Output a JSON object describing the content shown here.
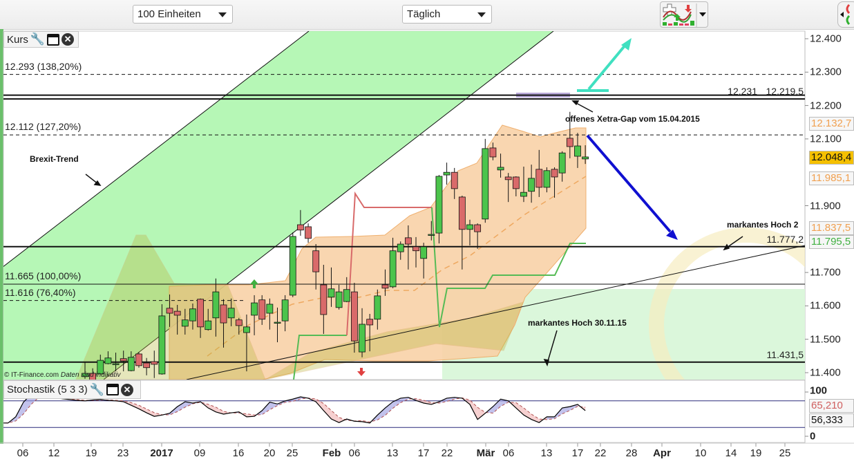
{
  "toolbar": {
    "units_select": "100 Einheiten",
    "interval_select": "Täglich",
    "indicator_button_icon": "indicator-chart-icon",
    "swap_button_icon": "swap-arrows-icon"
  },
  "main_panel": {
    "label": "Kurs",
    "copyright": "© IT-Finance.com",
    "disclaimer": "Daten sind indikativ"
  },
  "stoch_panel": {
    "label": "Stochastik (5 3 3)",
    "axis_labels": [
      "100",
      "0"
    ],
    "tag_d": "65,210",
    "tag_k": "56,333",
    "colors": {
      "k_line": "#000000",
      "d_line": "#b05050",
      "fill_up": "#9a9ae0",
      "fill_down": "#f0b0b0",
      "band": "#2a2a7a"
    }
  },
  "annotations": {
    "gap": "offenes Xetra-Gap vom 15.04.2015",
    "brexit": "Brexit-Trend",
    "hoch2": "markantes Hoch 2",
    "hoch_3011": "markantes Hoch 30.11.15"
  },
  "chart_data": {
    "type": "candlestick",
    "ylim": [
      11.4,
      12.4
    ],
    "y_ticks": [
      "12.400",
      "12.300",
      "12.200",
      "12.100",
      "11.900",
      "11.700",
      "11.600",
      "11.500",
      "11.400"
    ],
    "y_tick_values": [
      12.4,
      12.3,
      12.2,
      12.1,
      11.9,
      11.7,
      11.6,
      11.5,
      11.4
    ],
    "x_ticks": [
      "06",
      "12",
      "19",
      "23",
      "2017",
      "09",
      "16",
      "20",
      "25",
      "Feb",
      "06",
      "13",
      "17",
      "22",
      "Mär",
      "06",
      "13",
      "17",
      "22",
      "28",
      "Apr",
      "10",
      "14",
      "19",
      "25"
    ],
    "x_ticks_bold": [
      "2017",
      "Feb",
      "Mär",
      "Apr"
    ],
    "colors": {
      "up": "#4cc44c",
      "down": "#d96a6a",
      "bollinger": "#f9d2a8",
      "channel": "#b6f7b6",
      "gap": "#b9a9d9",
      "teal_arrow": "#40e0c0",
      "blue_arrow": "#1010d0"
    },
    "candles_ohlc": [
      [
        11.388,
        11.433,
        11.382,
        11.398
      ],
      [
        11.398,
        11.413,
        11.377,
        11.377
      ],
      [
        11.396,
        11.454,
        11.396,
        11.437
      ],
      [
        11.427,
        11.464,
        11.425,
        11.444
      ],
      [
        11.427,
        11.46,
        11.404,
        11.427
      ],
      [
        11.442,
        11.466,
        11.404,
        11.435
      ],
      [
        11.406,
        11.464,
        11.404,
        11.446
      ],
      [
        11.456,
        11.462,
        11.415,
        11.421
      ],
      [
        11.429,
        11.444,
        11.392,
        11.415
      ],
      [
        11.433,
        11.466,
        11.384,
        11.425
      ],
      [
        11.396,
        11.605,
        11.394,
        11.57
      ],
      [
        11.593,
        11.634,
        11.537,
        11.578
      ],
      [
        11.584,
        11.603,
        11.514,
        11.572
      ],
      [
        11.539,
        11.591,
        11.514,
        11.558
      ],
      [
        11.555,
        11.607,
        11.529,
        11.591
      ],
      [
        11.62,
        11.622,
        11.504,
        11.537
      ],
      [
        11.529,
        11.591,
        11.526,
        11.555
      ],
      [
        11.564,
        11.682,
        11.508,
        11.642
      ],
      [
        11.603,
        11.62,
        11.475,
        11.549
      ],
      [
        11.564,
        11.622,
        11.539,
        11.593
      ],
      [
        11.558,
        11.564,
        11.514,
        11.541
      ],
      [
        11.52,
        11.574,
        11.404,
        11.537
      ],
      [
        11.572,
        11.632,
        11.512,
        11.609
      ],
      [
        11.618,
        11.632,
        11.543,
        11.56
      ],
      [
        11.578,
        11.622,
        11.529,
        11.605
      ],
      [
        11.549,
        11.595,
        11.491,
        11.551
      ],
      [
        11.555,
        11.632,
        11.524,
        11.618
      ],
      [
        11.632,
        11.82,
        11.626,
        11.808
      ],
      [
        11.843,
        11.887,
        11.81,
        11.827
      ],
      [
        11.837,
        11.847,
        11.789,
        11.802
      ],
      [
        11.765,
        11.785,
        11.649,
        11.702
      ],
      [
        11.663,
        11.723,
        11.516,
        11.574
      ],
      [
        11.626,
        11.715,
        11.597,
        11.651
      ],
      [
        11.595,
        11.663,
        11.589,
        11.642
      ],
      [
        11.613,
        11.686,
        11.611,
        11.649
      ],
      [
        11.642,
        11.669,
        11.46,
        11.495
      ],
      [
        11.462,
        11.593,
        11.446,
        11.545
      ],
      [
        11.56,
        11.576,
        11.464,
        11.543
      ],
      [
        11.56,
        11.649,
        11.529,
        11.63
      ],
      [
        11.663,
        11.709,
        11.63,
        11.653
      ],
      [
        11.657,
        11.804,
        11.653,
        11.765
      ],
      [
        11.762,
        11.793,
        11.738,
        11.785
      ],
      [
        11.804,
        11.841,
        11.709,
        11.785
      ],
      [
        11.777,
        11.806,
        11.715,
        11.765
      ],
      [
        11.742,
        11.789,
        11.682,
        11.777
      ],
      [
        11.812,
        11.854,
        11.796,
        11.814
      ],
      [
        11.818,
        11.992,
        11.787,
        11.988
      ],
      [
        11.992,
        12.029,
        11.963,
        12.0
      ],
      [
        12.0,
        12.013,
        11.92,
        11.951
      ],
      [
        11.926,
        11.93,
        11.709,
        11.829
      ],
      [
        11.829,
        11.858,
        11.781,
        11.843
      ],
      [
        11.843,
        11.847,
        11.771,
        11.822
      ],
      [
        11.86,
        12.1,
        11.849,
        12.071
      ],
      [
        12.073,
        12.089,
        12.036,
        12.046
      ],
      [
        12.007,
        12.056,
        11.984,
        12.015
      ],
      [
        11.986,
        11.998,
        11.911,
        11.978
      ],
      [
        11.986,
        11.988,
        11.928,
        11.951
      ],
      [
        11.928,
        12.017,
        11.911,
        11.94
      ],
      [
        11.943,
        12.023,
        11.909,
        11.982
      ],
      [
        12.009,
        12.067,
        11.926,
        11.955
      ],
      [
        11.955,
        12.015,
        11.94,
        12.005
      ],
      [
        12.009,
        12.015,
        11.924,
        11.986
      ],
      [
        11.998,
        12.063,
        11.972,
        12.058
      ],
      [
        12.102,
        12.181,
        12.042,
        12.077
      ],
      [
        12.048,
        12.118,
        12.013,
        12.079
      ],
      [
        12.04,
        12.081,
        12.025,
        12.046
      ]
    ],
    "levels": [
      {
        "price": 12.293,
        "label": "12.293 (138,20%)",
        "side": "left",
        "style": "dashed"
      },
      {
        "price": 12.231,
        "label": "12.231",
        "side": "right",
        "style": "solid"
      },
      {
        "price": 12.2195,
        "label": "12.219,5",
        "side": "right",
        "style": "solid"
      },
      {
        "price": 12.112,
        "label": "12.112 (127,20%)",
        "side": "left",
        "style": "dashed"
      },
      {
        "price": 11.7772,
        "label": "11.777,2",
        "side": "right",
        "style": "solid"
      },
      {
        "price": 11.665,
        "label": "11.665 (100,00%)",
        "side": "left",
        "style": "solid-thin"
      },
      {
        "price": 11.616,
        "label": "11.616 (76,40%)",
        "side": "left",
        "style": "dashed-short"
      },
      {
        "price": 11.4315,
        "label": "11.431,5",
        "side": "right",
        "style": "solid"
      }
    ],
    "price_tags": [
      {
        "price": 12.1327,
        "label": "12.132,7",
        "color": "#f0a050",
        "bg": "#f6f6f6"
      },
      {
        "price": 12.0484,
        "label": "12.048,4",
        "color": "#111111",
        "bg": "#f5c000"
      },
      {
        "price": 11.9851,
        "label": "11.985,1",
        "color": "#f0a050",
        "bg": "#f6f6f6"
      },
      {
        "price": 11.8375,
        "label": "11.837,5",
        "color": "#f0a050",
        "bg": "#f6f6f6"
      },
      {
        "price": 11.7955,
        "label": "11.795,5",
        "color": "#40b040",
        "bg": "#f6f6f6"
      }
    ],
    "stochastic_k": [
      30,
      30,
      44,
      77,
      95,
      92,
      90,
      88,
      85,
      83,
      81,
      80,
      82,
      83,
      81,
      80,
      78,
      70,
      62,
      53,
      45,
      48,
      52,
      67,
      78,
      75,
      78,
      64,
      55,
      50,
      53,
      55,
      44,
      45,
      58,
      77,
      73,
      80,
      84,
      89,
      86,
      78,
      58,
      39,
      31,
      39,
      34,
      33,
      30,
      48,
      64,
      78,
      86,
      88,
      81,
      75,
      72,
      78,
      86,
      88,
      86,
      72,
      38,
      52,
      67,
      84,
      80,
      64,
      48,
      38,
      31,
      44,
      44,
      64,
      67,
      72,
      58
    ],
    "stochastic_levels": [
      80,
      20
    ]
  }
}
